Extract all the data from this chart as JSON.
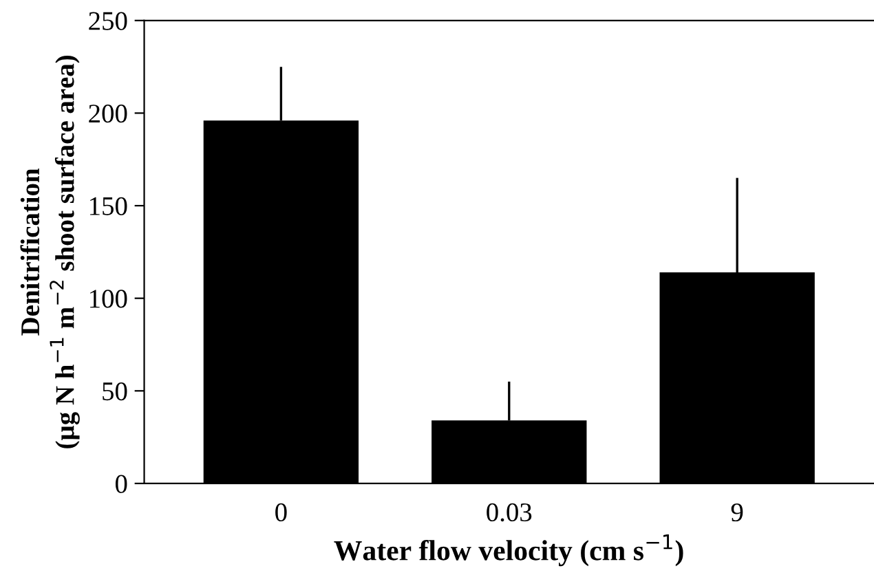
{
  "chart_data": {
    "type": "bar",
    "xlabel": "Water flow velocity (cm s$^{−1}$)",
    "ylabel": "Denitrification\n(µg N h$^{−1}$ m$^{−2}$ shoot surface area)",
    "categories": [
      "0",
      "0.03",
      "9"
    ],
    "values": [
      196,
      34,
      114
    ],
    "errors": [
      [
        196,
        225
      ],
      [
        34,
        55
      ],
      [
        114,
        165
      ]
    ],
    "color": "#000000",
    "ylim": [
      0,
      250
    ],
    "yticks": [
      0,
      50,
      100,
      150,
      200,
      250
    ],
    "grid": false
  }
}
